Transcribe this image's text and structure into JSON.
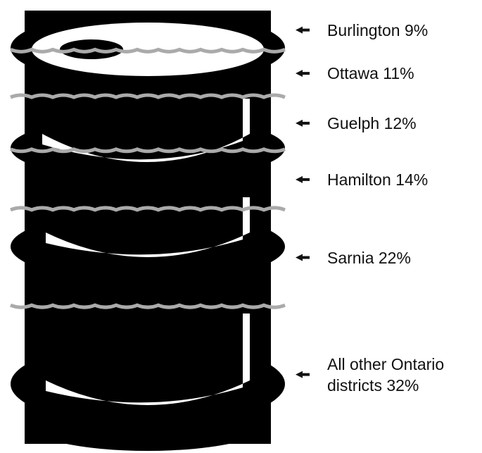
{
  "chart_data": {
    "type": "barrel",
    "categories": [
      "Burlington",
      "Ottawa",
      "Guelph",
      "Hamilton",
      "Sarnia",
      "All other Ontario districts"
    ],
    "values": [
      9,
      11,
      12,
      14,
      22,
      32
    ],
    "value_labels": [
      "9%",
      "11%",
      "12%",
      "14%",
      "22%",
      "32%"
    ],
    "color": "#000000"
  }
}
